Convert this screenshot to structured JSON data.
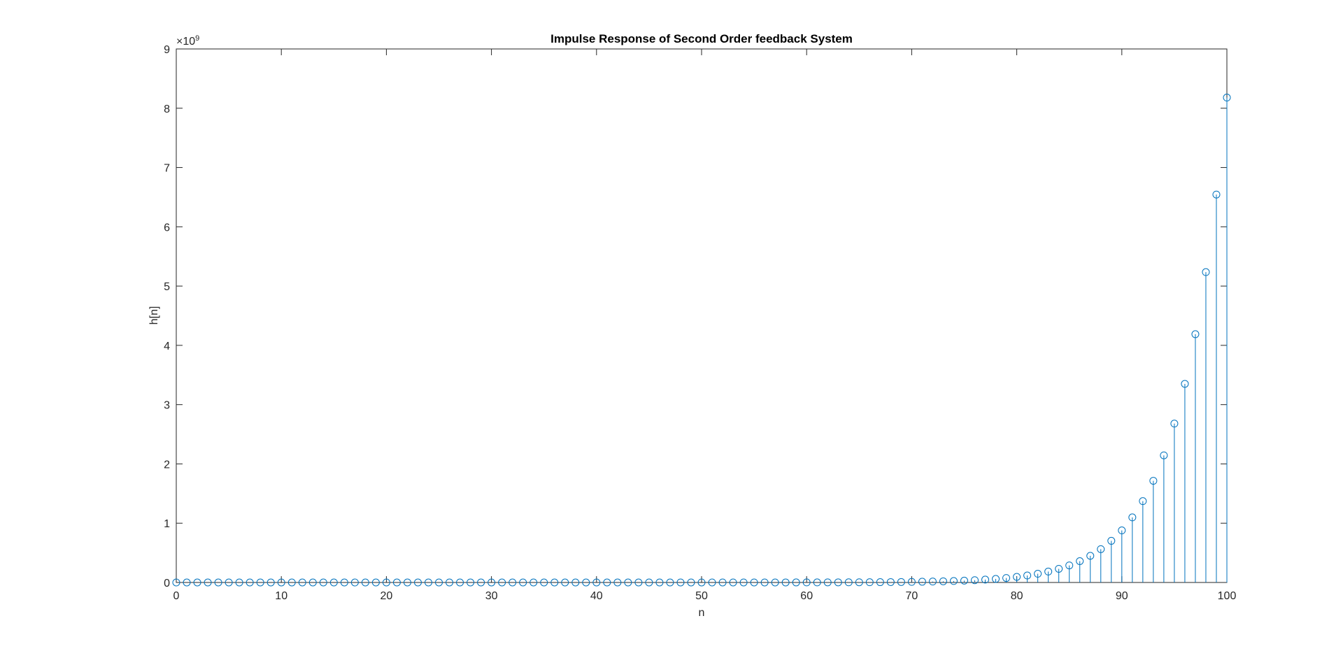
{
  "chart_data": {
    "type": "stem",
    "title": "Impulse Response of Second Order feedback System",
    "xlabel": "n",
    "ylabel": "h[n]",
    "y_exponent_label": "×10",
    "y_exponent_power": "9",
    "xlim": [
      0,
      100
    ],
    "ylim": [
      0,
      9000000000
    ],
    "x_ticks": [
      0,
      10,
      20,
      30,
      40,
      50,
      60,
      70,
      80,
      90,
      100
    ],
    "x_tick_labels": [
      "0",
      "10",
      "20",
      "30",
      "40",
      "50",
      "60",
      "70",
      "80",
      "90",
      "100"
    ],
    "y_ticks": [
      0,
      1000000000,
      2000000000,
      3000000000,
      4000000000,
      5000000000,
      6000000000,
      7000000000,
      8000000000,
      9000000000
    ],
    "y_tick_labels": [
      "0",
      "1",
      "2",
      "3",
      "4",
      "5",
      "6",
      "7",
      "8",
      "9"
    ],
    "grid": false,
    "box": true,
    "series_color": "#0072BD",
    "growth_ratio": 1.25,
    "series": [
      {
        "n_start": 0,
        "n_end": 100,
        "h_at_n_end": 8180000000
      }
    ]
  }
}
